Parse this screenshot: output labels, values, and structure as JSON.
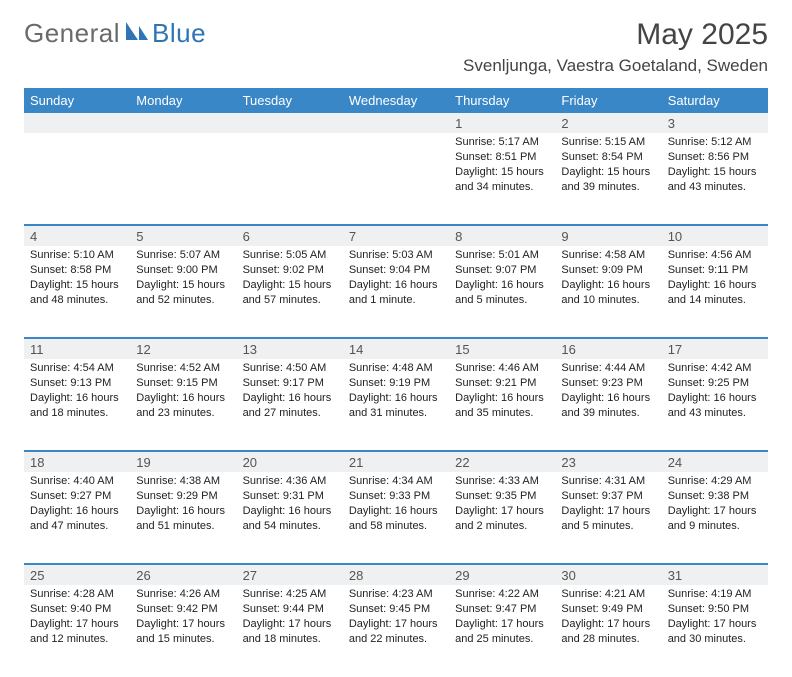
{
  "brand": {
    "general": "General",
    "blue": "Blue"
  },
  "title": "May 2025",
  "location": "Svenljunga, Vaestra Goetaland, Sweden",
  "colors": {
    "header_bg": "#3a87c8",
    "header_text": "#ffffff",
    "daynum_bg": "#eef0f1",
    "rule": "#3a87c8",
    "brand_grey": "#6a6a6a",
    "brand_blue": "#2f75b5"
  },
  "dow": [
    "Sunday",
    "Monday",
    "Tuesday",
    "Wednesday",
    "Thursday",
    "Friday",
    "Saturday"
  ],
  "weeks": [
    [
      {
        "n": "",
        "sr": "",
        "ss": "",
        "dl": ""
      },
      {
        "n": "",
        "sr": "",
        "ss": "",
        "dl": ""
      },
      {
        "n": "",
        "sr": "",
        "ss": "",
        "dl": ""
      },
      {
        "n": "",
        "sr": "",
        "ss": "",
        "dl": ""
      },
      {
        "n": "1",
        "sr": "5:17 AM",
        "ss": "8:51 PM",
        "dl": "15 hours and 34 minutes."
      },
      {
        "n": "2",
        "sr": "5:15 AM",
        "ss": "8:54 PM",
        "dl": "15 hours and 39 minutes."
      },
      {
        "n": "3",
        "sr": "5:12 AM",
        "ss": "8:56 PM",
        "dl": "15 hours and 43 minutes."
      }
    ],
    [
      {
        "n": "4",
        "sr": "5:10 AM",
        "ss": "8:58 PM",
        "dl": "15 hours and 48 minutes."
      },
      {
        "n": "5",
        "sr": "5:07 AM",
        "ss": "9:00 PM",
        "dl": "15 hours and 52 minutes."
      },
      {
        "n": "6",
        "sr": "5:05 AM",
        "ss": "9:02 PM",
        "dl": "15 hours and 57 minutes."
      },
      {
        "n": "7",
        "sr": "5:03 AM",
        "ss": "9:04 PM",
        "dl": "16 hours and 1 minute."
      },
      {
        "n": "8",
        "sr": "5:01 AM",
        "ss": "9:07 PM",
        "dl": "16 hours and 5 minutes."
      },
      {
        "n": "9",
        "sr": "4:58 AM",
        "ss": "9:09 PM",
        "dl": "16 hours and 10 minutes."
      },
      {
        "n": "10",
        "sr": "4:56 AM",
        "ss": "9:11 PM",
        "dl": "16 hours and 14 minutes."
      }
    ],
    [
      {
        "n": "11",
        "sr": "4:54 AM",
        "ss": "9:13 PM",
        "dl": "16 hours and 18 minutes."
      },
      {
        "n": "12",
        "sr": "4:52 AM",
        "ss": "9:15 PM",
        "dl": "16 hours and 23 minutes."
      },
      {
        "n": "13",
        "sr": "4:50 AM",
        "ss": "9:17 PM",
        "dl": "16 hours and 27 minutes."
      },
      {
        "n": "14",
        "sr": "4:48 AM",
        "ss": "9:19 PM",
        "dl": "16 hours and 31 minutes."
      },
      {
        "n": "15",
        "sr": "4:46 AM",
        "ss": "9:21 PM",
        "dl": "16 hours and 35 minutes."
      },
      {
        "n": "16",
        "sr": "4:44 AM",
        "ss": "9:23 PM",
        "dl": "16 hours and 39 minutes."
      },
      {
        "n": "17",
        "sr": "4:42 AM",
        "ss": "9:25 PM",
        "dl": "16 hours and 43 minutes."
      }
    ],
    [
      {
        "n": "18",
        "sr": "4:40 AM",
        "ss": "9:27 PM",
        "dl": "16 hours and 47 minutes."
      },
      {
        "n": "19",
        "sr": "4:38 AM",
        "ss": "9:29 PM",
        "dl": "16 hours and 51 minutes."
      },
      {
        "n": "20",
        "sr": "4:36 AM",
        "ss": "9:31 PM",
        "dl": "16 hours and 54 minutes."
      },
      {
        "n": "21",
        "sr": "4:34 AM",
        "ss": "9:33 PM",
        "dl": "16 hours and 58 minutes."
      },
      {
        "n": "22",
        "sr": "4:33 AM",
        "ss": "9:35 PM",
        "dl": "17 hours and 2 minutes."
      },
      {
        "n": "23",
        "sr": "4:31 AM",
        "ss": "9:37 PM",
        "dl": "17 hours and 5 minutes."
      },
      {
        "n": "24",
        "sr": "4:29 AM",
        "ss": "9:38 PM",
        "dl": "17 hours and 9 minutes."
      }
    ],
    [
      {
        "n": "25",
        "sr": "4:28 AM",
        "ss": "9:40 PM",
        "dl": "17 hours and 12 minutes."
      },
      {
        "n": "26",
        "sr": "4:26 AM",
        "ss": "9:42 PM",
        "dl": "17 hours and 15 minutes."
      },
      {
        "n": "27",
        "sr": "4:25 AM",
        "ss": "9:44 PM",
        "dl": "17 hours and 18 minutes."
      },
      {
        "n": "28",
        "sr": "4:23 AM",
        "ss": "9:45 PM",
        "dl": "17 hours and 22 minutes."
      },
      {
        "n": "29",
        "sr": "4:22 AM",
        "ss": "9:47 PM",
        "dl": "17 hours and 25 minutes."
      },
      {
        "n": "30",
        "sr": "4:21 AM",
        "ss": "9:49 PM",
        "dl": "17 hours and 28 minutes."
      },
      {
        "n": "31",
        "sr": "4:19 AM",
        "ss": "9:50 PM",
        "dl": "17 hours and 30 minutes."
      }
    ]
  ],
  "labels": {
    "sunrise": "Sunrise: ",
    "sunset": "Sunset: ",
    "daylight": "Daylight: "
  }
}
